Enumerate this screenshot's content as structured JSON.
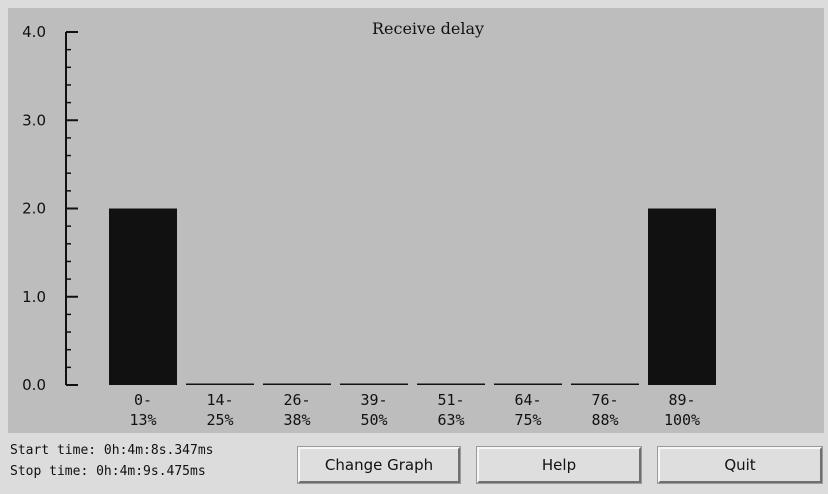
{
  "status": {
    "start": "Start time: 0h:4m:8s.347ms",
    "stop": "Stop time: 0h:4m:9s.475ms"
  },
  "buttons": {
    "change_graph": "Change Graph",
    "help": "Help",
    "quit": "Quit"
  },
  "colors": {
    "plot_background": "#bdbdbd",
    "bar": "#111111",
    "window": "#dcdcdc"
  },
  "chart_data": {
    "type": "bar",
    "title": "Receive delay",
    "xlabel": "",
    "ylabel": "",
    "ylim": [
      0,
      4
    ],
    "yticks": [
      {
        "v": 0,
        "label": "0.0"
      },
      {
        "v": 1,
        "label": "1.0"
      },
      {
        "v": 2,
        "label": "2.0"
      },
      {
        "v": 3,
        "label": "3.0"
      },
      {
        "v": 4,
        "label": "4.0"
      }
    ],
    "y_minor_step": 0.2,
    "grid": false,
    "categories": [
      [
        "0-",
        "13%"
      ],
      [
        "14-",
        "25%"
      ],
      [
        "26-",
        "38%"
      ],
      [
        "39-",
        "50%"
      ],
      [
        "51-",
        "63%"
      ],
      [
        "64-",
        "75%"
      ],
      [
        "76-",
        "88%"
      ],
      [
        "89-",
        "100%"
      ]
    ],
    "values": [
      2,
      0,
      0,
      0,
      0,
      0,
      0,
      2
    ]
  }
}
